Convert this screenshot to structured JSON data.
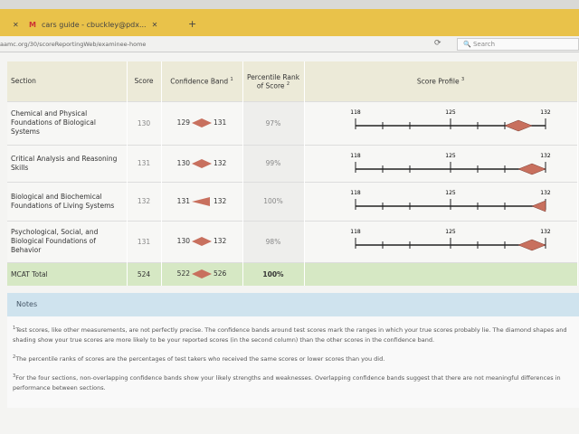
{
  "browser": {
    "tab_label": "cars guide - cbuckley@pdx...",
    "url": "aamc.org/30/scoreReportingWeb/examinee-home",
    "search_placeholder": "Search"
  },
  "table": {
    "headers": {
      "section": "Section",
      "score": "Score",
      "band": "Confidence Band",
      "band_sup": "1",
      "percentile": "Percentile Rank of Score",
      "percentile_sup": "2",
      "profile": "Score Profile",
      "profile_sup": "3"
    },
    "axis": {
      "min": 118,
      "mid": 125,
      "max": 132,
      "labels": [
        "118",
        "125",
        "132"
      ]
    },
    "rows": [
      {
        "section": "Chemical and Physical Foundations of Biological Systems",
        "score": "130",
        "low": "129",
        "high": "131",
        "percentile": "97%",
        "s": 130,
        "lo": 129,
        "hi": 131
      },
      {
        "section": "Critical Analysis and Reasoning Skills",
        "score": "131",
        "low": "130",
        "high": "132",
        "percentile": "99%",
        "s": 131,
        "lo": 130,
        "hi": 132
      },
      {
        "section": "Biological and Biochemical Foundations of Living Systems",
        "score": "132",
        "low": "131",
        "high": "132",
        "percentile": "100%",
        "s": 132,
        "lo": 131,
        "hi": 132
      },
      {
        "section": "Psychological, Social, and Biological Foundations of Behavior",
        "score": "131",
        "low": "130",
        "high": "132",
        "percentile": "98%",
        "s": 131,
        "lo": 130,
        "hi": 132
      }
    ],
    "total": {
      "section": "MCAT Total",
      "score": "524",
      "low": "522",
      "high": "526",
      "percentile": "100%"
    }
  },
  "notes": {
    "title": "Notes",
    "n1": "Test scores, like other measurements, are not perfectly precise. The confidence bands around test scores mark the ranges in which your true scores probably lie. The diamond shapes and shading show your true scores are more likely to be your reported scores (in the second column) than the other scores in the confidence band.",
    "n2": "The percentile ranks of scores are the percentages of test takers who received the same scores or lower scores than you did.",
    "n3": "For the four sections, non-overlapping confidence bands show your likely strengths and weaknesses. Overlapping confidence bands suggest that there are not meaningful differences in performance between sections."
  },
  "colors": {
    "diamond": "#c8705e",
    "tabbar": "#e9c24a",
    "total_row": "#d6e8c4",
    "notes_header": "#cfe3ee"
  }
}
